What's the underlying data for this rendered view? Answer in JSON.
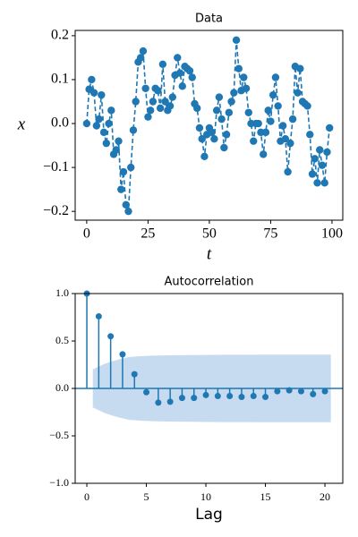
{
  "chart_data": [
    {
      "type": "line",
      "title": "Data",
      "xlabel": "t",
      "ylabel": "x",
      "color": "#1f77b4",
      "x": [
        0,
        1,
        2,
        3,
        4,
        5,
        6,
        7,
        8,
        9,
        10,
        11,
        12,
        13,
        14,
        15,
        16,
        17,
        18,
        19,
        20,
        21,
        22,
        23,
        24,
        25,
        26,
        27,
        28,
        29,
        30,
        31,
        32,
        33,
        34,
        35,
        36,
        37,
        38,
        39,
        40,
        41,
        42,
        43,
        44,
        45,
        46,
        47,
        48,
        49,
        50,
        51,
        52,
        53,
        54,
        55,
        56,
        57,
        58,
        59,
        60,
        61,
        62,
        63,
        64,
        65,
        66,
        67,
        68,
        69,
        70,
        71,
        72,
        73,
        74,
        75,
        76,
        77,
        78,
        79,
        80,
        81,
        82,
        83,
        84,
        85,
        86,
        87,
        88,
        89,
        90,
        91,
        92,
        93,
        94,
        95,
        96,
        97,
        98,
        99
      ],
      "values": [
        0.0,
        0.078,
        0.1,
        0.07,
        -0.005,
        0.01,
        0.065,
        -0.02,
        -0.045,
        0.0,
        0.03,
        -0.07,
        -0.06,
        -0.04,
        -0.15,
        -0.11,
        -0.185,
        -0.2,
        -0.1,
        -0.015,
        0.05,
        0.14,
        0.15,
        0.165,
        0.08,
        0.015,
        0.03,
        0.05,
        0.08,
        0.075,
        0.035,
        0.135,
        0.05,
        0.03,
        0.04,
        0.06,
        0.11,
        0.15,
        0.115,
        0.085,
        0.13,
        0.125,
        0.12,
        0.105,
        0.045,
        0.035,
        -0.01,
        -0.035,
        -0.075,
        -0.025,
        -0.01,
        -0.02,
        -0.035,
        0.03,
        0.06,
        0.01,
        -0.055,
        -0.025,
        0.025,
        0.05,
        0.07,
        0.19,
        0.125,
        0.075,
        0.105,
        0.08,
        0.025,
        0.0,
        -0.04,
        0.0,
        0.0,
        -0.02,
        -0.07,
        -0.02,
        0.03,
        0.005,
        0.065,
        0.105,
        0.04,
        -0.04,
        -0.005,
        -0.035,
        -0.11,
        -0.045,
        0.01,
        0.13,
        0.07,
        0.125,
        0.05,
        0.045,
        0.04,
        -0.025,
        -0.115,
        -0.08,
        -0.135,
        -0.06,
        -0.095,
        -0.135,
        -0.065,
        -0.01
      ],
      "xlim": [
        -4.7,
        104.4
      ],
      "ylim": [
        -0.22,
        0.212
      ],
      "xticks": [
        0,
        25,
        50,
        75,
        100
      ],
      "yticks": [
        {
          "value": -0.2,
          "label": "−0.2"
        },
        {
          "value": -0.1,
          "label": "−0.1"
        },
        {
          "value": 0.0,
          "label": "0.0"
        },
        0.1,
        0.2
      ]
    },
    {
      "type": "stem",
      "title": "Autocorrelation",
      "xlabel": "Lag",
      "color": "#1f77b4",
      "band_color": "#c6dbef",
      "x": [
        0,
        1,
        2,
        3,
        4,
        5,
        6,
        7,
        8,
        9,
        10,
        11,
        12,
        13,
        14,
        15,
        16,
        17,
        18,
        19,
        20
      ],
      "values": [
        1.0,
        0.76,
        0.55,
        0.36,
        0.15,
        -0.04,
        -0.15,
        -0.14,
        -0.1,
        -0.1,
        -0.07,
        -0.08,
        -0.08,
        -0.09,
        -0.08,
        -0.09,
        -0.03,
        -0.02,
        -0.03,
        -0.06,
        -0.03
      ],
      "band": {
        "x": [
          0.5,
          1.5,
          2.5,
          3.5,
          4.5,
          5.5,
          6.5,
          7.5,
          8.5,
          9.5,
          10.5,
          11.5,
          12.5,
          13.5,
          14.5,
          15.5,
          16.5,
          17.5,
          18.5,
          19.5,
          20.5
        ],
        "upper": [
          0.2,
          0.26,
          0.3,
          0.33,
          0.34,
          0.345,
          0.348,
          0.35,
          0.352,
          0.353,
          0.354,
          0.355,
          0.355,
          0.355,
          0.356,
          0.356,
          0.356,
          0.356,
          0.356,
          0.356,
          0.356
        ],
        "lower": [
          -0.2,
          -0.26,
          -0.3,
          -0.33,
          -0.34,
          -0.345,
          -0.348,
          -0.35,
          -0.352,
          -0.353,
          -0.354,
          -0.355,
          -0.355,
          -0.355,
          -0.356,
          -0.356,
          -0.356,
          -0.356,
          -0.356,
          -0.356,
          -0.356
        ]
      },
      "xlim": [
        -0.98,
        21.5
      ],
      "ylim": [
        -1.0,
        1.0
      ],
      "xticks": [
        0,
        5,
        10,
        15,
        20
      ],
      "yticks": [
        {
          "value": -1.0,
          "label": "−1.0"
        },
        {
          "value": -0.5,
          "label": "−0.5"
        },
        {
          "value": 0.0,
          "label": "0.0"
        },
        0.5,
        {
          "value": 1.0,
          "label": "1.0"
        }
      ]
    }
  ]
}
